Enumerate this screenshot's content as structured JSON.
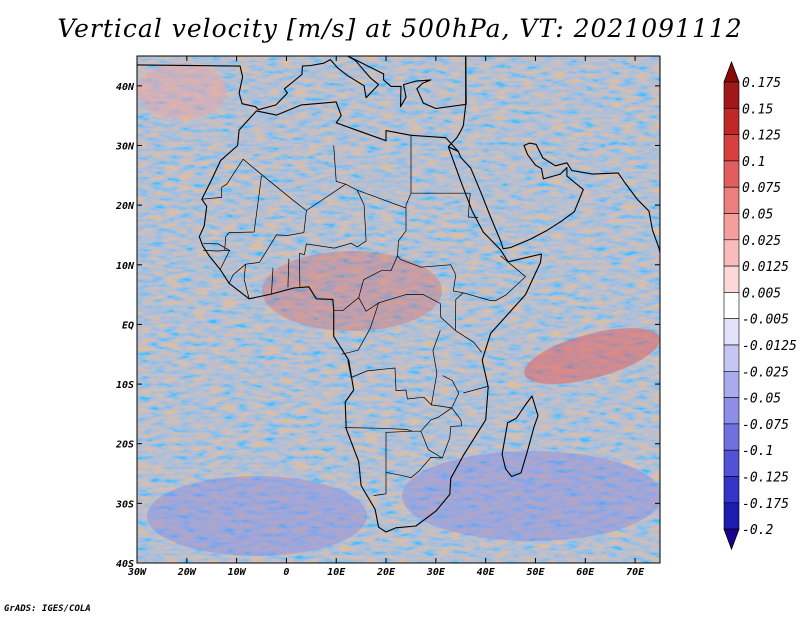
{
  "title": "Vertical velocity [m/s] at 500hPa, VT: 2021091112",
  "credit": "GrADS: IGES/COLA",
  "map": {
    "lon_range": [
      -30,
      75
    ],
    "lat_range": [
      -40,
      45
    ],
    "lon_ticks": [
      {
        "value": -30,
        "label": "30W"
      },
      {
        "value": -20,
        "label": "20W"
      },
      {
        "value": -10,
        "label": "10W"
      },
      {
        "value": 0,
        "label": "0"
      },
      {
        "value": 10,
        "label": "10E"
      },
      {
        "value": 20,
        "label": "20E"
      },
      {
        "value": 30,
        "label": "30E"
      },
      {
        "value": 40,
        "label": "40E"
      },
      {
        "value": 50,
        "label": "50E"
      },
      {
        "value": 60,
        "label": "60E"
      },
      {
        "value": 70,
        "label": "70E"
      }
    ],
    "lat_ticks": [
      {
        "value": 40,
        "label": "40N"
      },
      {
        "value": 30,
        "label": "30N"
      },
      {
        "value": 20,
        "label": "20N"
      },
      {
        "value": 10,
        "label": "10N"
      },
      {
        "value": 0,
        "label": "EQ"
      },
      {
        "value": -10,
        "label": "10S"
      },
      {
        "value": -20,
        "label": "20S"
      },
      {
        "value": -30,
        "label": "30S"
      },
      {
        "value": -40,
        "label": "40S"
      }
    ]
  },
  "colorbar": {
    "labels": [
      "0.175",
      "0.15",
      "0.125",
      "0.1",
      "0.075",
      "0.05",
      "0.025",
      "0.0125",
      "0.005",
      "-0.005",
      "-0.0125",
      "-0.025",
      "-0.05",
      "-0.075",
      "-0.1",
      "-0.125",
      "-0.175",
      "-0.2"
    ],
    "colors": [
      "#a01818",
      "#c02828",
      "#d84040",
      "#e25e5e",
      "#ec7e7e",
      "#f49e9e",
      "#f8bcbc",
      "#fcd8d8",
      "#ffffff",
      "#e2e2fa",
      "#c6c6f4",
      "#aaaaee",
      "#8e8ee8",
      "#7070e0",
      "#5252d6",
      "#3434c8",
      "#1c1cb0"
    ],
    "top_arrow_color": "#8a0a0a",
    "bottom_arrow_color": "#1a0090"
  }
}
